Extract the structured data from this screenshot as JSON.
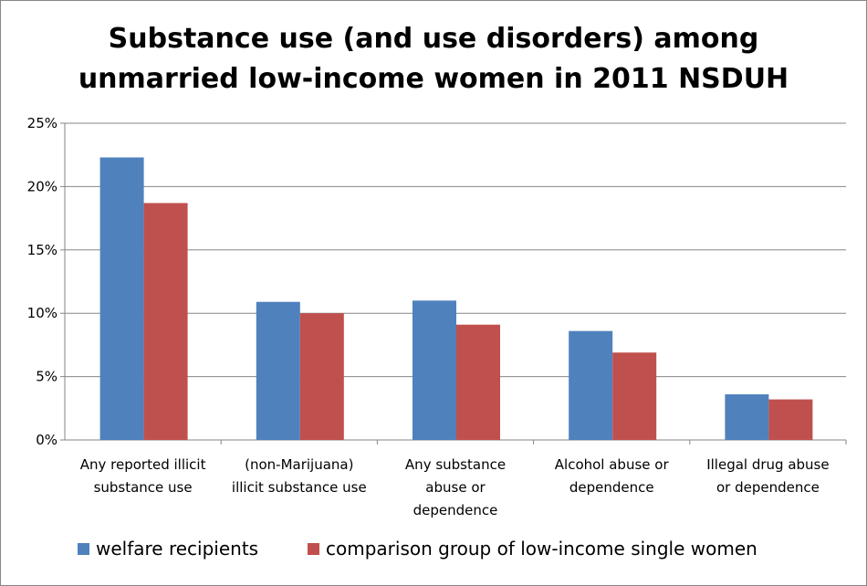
{
  "chart_data": {
    "type": "bar",
    "title_lines": [
      "Substance use (and use disorders) among",
      "unmarried low-income women in 2011 NSDUH"
    ],
    "xlabel": "",
    "ylabel": "",
    "categories": [
      [
        "Any reported illicit",
        "substance use"
      ],
      [
        "(non-Marijuana)",
        "illicit substance use"
      ],
      [
        "Any substance",
        "abuse or",
        "dependence"
      ],
      [
        "Alcohol abuse or",
        "dependence"
      ],
      [
        "Illegal drug abuse",
        "or dependence"
      ]
    ],
    "series": [
      {
        "name": "welfare recipients",
        "color": "#4F81BD",
        "values": [
          22.3,
          10.9,
          11.0,
          8.6,
          3.6
        ]
      },
      {
        "name": "comparison group of low-income single women",
        "color": "#C0504D",
        "values": [
          18.7,
          10.0,
          9.1,
          6.9,
          3.2
        ]
      }
    ],
    "ylim": [
      0,
      25
    ],
    "yticks": [
      0,
      5,
      10,
      15,
      20,
      25
    ],
    "ytick_labels": [
      "0%",
      "5%",
      "10%",
      "15%",
      "20%",
      "25%"
    ],
    "grid": true,
    "legend_position": "bottom"
  }
}
